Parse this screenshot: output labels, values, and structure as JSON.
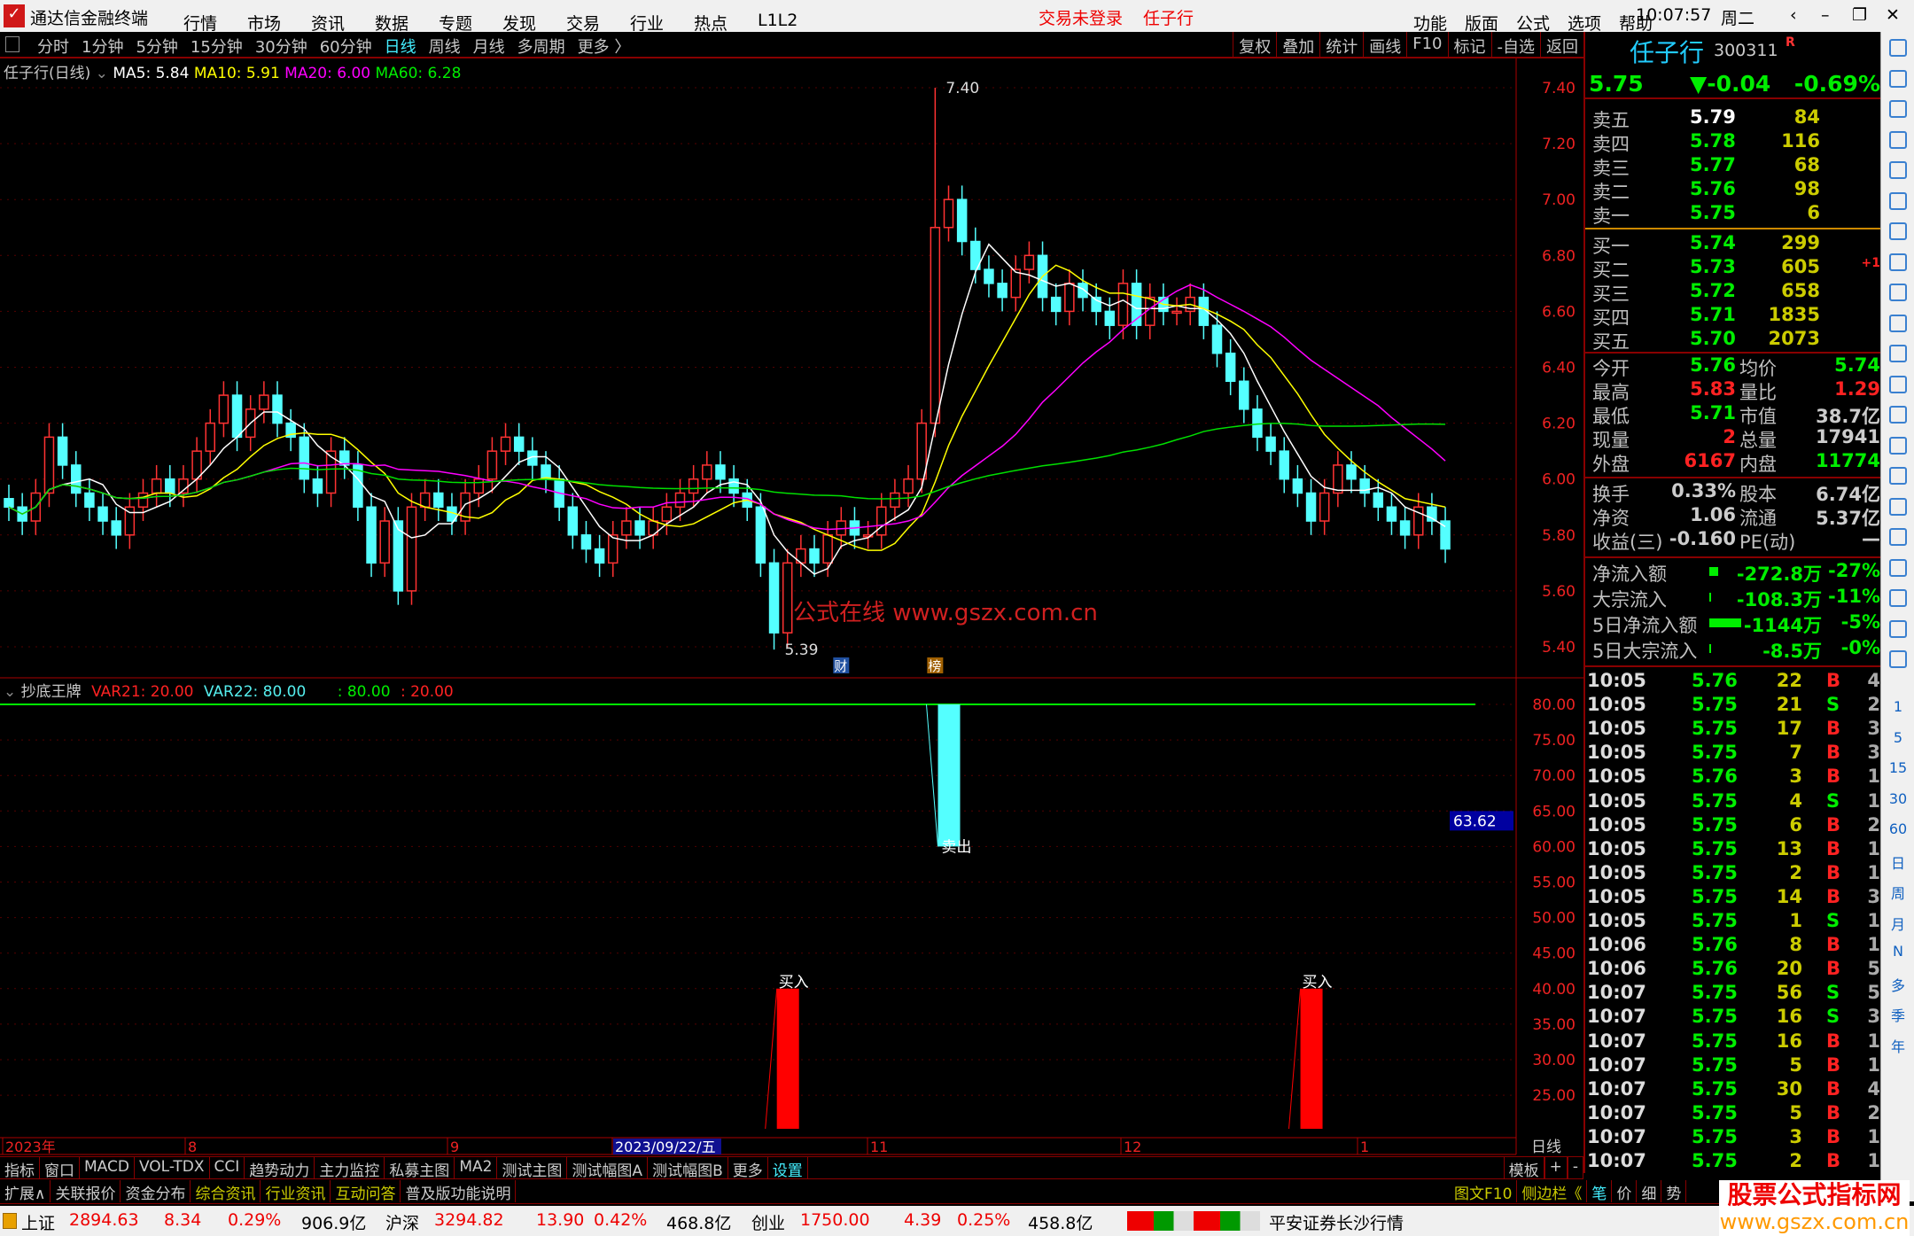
{
  "app": {
    "title": "通达信金融终端",
    "menu": [
      "行情",
      "市场",
      "资讯",
      "数据",
      "专题",
      "发现",
      "交易",
      "行业",
      "热点",
      "L1L2"
    ],
    "login": "交易未登录",
    "stock_tag": "任子行",
    "right_menu": [
      "功能",
      "版面",
      "公式",
      "选项",
      "帮助"
    ],
    "clock": "10:07:57",
    "weekday": "周二"
  },
  "periods": [
    "分时",
    "1分钟",
    "5分钟",
    "15分钟",
    "30分钟",
    "60分钟",
    "日线",
    "周线",
    "月线",
    "多周期",
    "更多 〉"
  ],
  "active_period": "日线",
  "chart_buttons": [
    "复权",
    "叠加",
    "统计",
    "画线",
    "F10",
    "标记",
    "-自选",
    "返回"
  ],
  "legend": {
    "title": "任子行(日线)",
    "ma5": "MA5: 5.84",
    "ma10": "MA10: 5.91",
    "ma20": "MA20: 6.00",
    "ma60": "MA60: 6.28"
  },
  "colors": {
    "ma5": "#ffffff",
    "ma10": "#ffff00",
    "ma20": "#ff00ff",
    "ma60": "#00e000",
    "up": "#ff3232",
    "down": "#54ffff"
  },
  "price_axis": [
    "7.40",
    "7.20",
    "7.00",
    "6.80",
    "6.60",
    "6.40",
    "6.20",
    "6.00",
    "5.80",
    "5.60",
    "5.40"
  ],
  "closes": [
    5.9,
    5.85,
    5.95,
    6.15,
    6.05,
    5.95,
    5.9,
    5.85,
    5.8,
    5.9,
    5.95,
    6.0,
    5.95,
    6.0,
    6.1,
    6.2,
    6.3,
    6.15,
    6.25,
    6.3,
    6.2,
    6.15,
    6.0,
    5.95,
    6.1,
    6.05,
    5.9,
    5.7,
    5.85,
    5.6,
    5.9,
    5.95,
    5.9,
    5.85,
    5.95,
    6.0,
    6.1,
    6.15,
    6.1,
    6.05,
    6.0,
    5.9,
    5.8,
    5.75,
    5.7,
    5.8,
    5.85,
    5.8,
    5.85,
    5.9,
    5.95,
    6.0,
    6.05,
    6.0,
    5.95,
    5.9,
    5.7,
    5.45,
    5.7,
    5.75,
    5.7,
    5.8,
    5.85,
    5.8,
    5.8,
    5.9,
    5.95,
    6.0,
    6.2,
    6.9,
    7.0,
    6.85,
    6.75,
    6.7,
    6.65,
    6.75,
    6.8,
    6.65,
    6.6,
    6.7,
    6.65,
    6.6,
    6.55,
    6.7,
    6.55,
    6.65,
    6.6,
    6.6,
    6.65,
    6.55,
    6.45,
    6.35,
    6.25,
    6.15,
    6.1,
    6.0,
    5.95,
    5.85,
    5.95,
    6.05,
    6.0,
    5.95,
    5.9,
    5.85,
    5.8,
    5.9,
    5.85,
    5.75
  ],
  "high_mark": "7.40",
  "low_mark": "5.39",
  "watermark": "公式在线  www.gszx.com.cn",
  "event_badges": [
    "财",
    "榜"
  ],
  "indicator": {
    "name": "抄底王牌",
    "var21": "VAR21: 20.00",
    "var22": "VAR22: 80.00",
    "l1": ": 80.00",
    "l2": ": 20.00",
    "axis": [
      "80.00",
      "75.00",
      "70.00",
      "65.00",
      "60.00",
      "55.00",
      "50.00",
      "45.00",
      "40.00",
      "35.00",
      "30.00",
      "25.00"
    ],
    "cursor": "63.62",
    "sell_label": "卖出",
    "buy_label": "买入",
    "signals": [
      {
        "type": "buy",
        "bar": 58,
        "value": 40
      },
      {
        "type": "sell",
        "bar": 70,
        "value": 60
      },
      {
        "type": "buy",
        "bar": 97,
        "value": 40
      }
    ]
  },
  "date_axis": [
    "2023年",
    "8",
    "9",
    "2023/09/22/五",
    "11",
    "12",
    "1"
  ],
  "period_label": "日线",
  "tabs": [
    "指标",
    "窗口",
    "MACD",
    "VOL-TDX",
    "CCI",
    "趋势动力",
    "主力监控",
    "私募主图",
    "MA2",
    "测试主图",
    "测试幅图A",
    "测试幅图B",
    "更多",
    "设置"
  ],
  "tabs_right": [
    "模板",
    "+",
    "-"
  ],
  "tabs2": [
    "扩展∧",
    "关联报价",
    "资金分布",
    "综合资讯",
    "行业资讯",
    "互动问答",
    "普及版功能说明"
  ],
  "tabs2_right": [
    "图文F10",
    "侧边栏《",
    "笔",
    "价",
    "细",
    "势"
  ],
  "quote": {
    "name": "任子行",
    "code": "300311",
    "flag": "R",
    "price": "5.75",
    "change": "▼-0.04",
    "pct": "-0.69%",
    "asks": [
      [
        "卖五",
        "5.79",
        "84"
      ],
      [
        "卖四",
        "5.78",
        "116"
      ],
      [
        "卖三",
        "5.77",
        "68"
      ],
      [
        "卖二",
        "5.76",
        "98"
      ],
      [
        "卖一",
        "5.75",
        "6"
      ]
    ],
    "bids": [
      [
        "买一",
        "5.74",
        "299",
        ""
      ],
      [
        "买二",
        "5.73",
        "605",
        "+1"
      ],
      [
        "买三",
        "5.72",
        "658",
        ""
      ],
      [
        "买四",
        "5.71",
        "1835",
        ""
      ],
      [
        "买五",
        "5.70",
        "2073",
        ""
      ]
    ],
    "stats": [
      [
        "今开",
        "5.76",
        "均价",
        "5.74"
      ],
      [
        "最高",
        "5.83",
        "量比",
        "1.29"
      ],
      [
        "最低",
        "5.71",
        "市值",
        "38.7亿"
      ],
      [
        "现量",
        "2",
        "总量",
        "17941"
      ],
      [
        "外盘",
        "6167",
        "内盘",
        "11774"
      ]
    ],
    "stats2": [
      [
        "换手",
        "0.33%",
        "股本",
        "6.74亿"
      ],
      [
        "净资",
        "1.06",
        "流通",
        "5.37亿"
      ],
      [
        "收益(三)",
        "-0.160",
        "PE(动)",
        "—"
      ]
    ],
    "flows": [
      [
        "净流入额",
        "-272.8万",
        "-27%",
        0.27
      ],
      [
        "大宗流入",
        "-108.3万",
        "-11%",
        0.05
      ],
      [
        "5日净流入额",
        "-1144万",
        "-5%",
        1.0
      ],
      [
        "5日大宗流入",
        "-8.5万",
        "-0%",
        0.03
      ]
    ]
  },
  "ticks": [
    [
      "10:05",
      "5.76",
      "22",
      "B",
      "4"
    ],
    [
      "10:05",
      "5.75",
      "21",
      "S",
      "2"
    ],
    [
      "10:05",
      "5.75",
      "17",
      "B",
      "3"
    ],
    [
      "10:05",
      "5.75",
      "7",
      "B",
      "3"
    ],
    [
      "10:05",
      "5.76",
      "3",
      "B",
      "1"
    ],
    [
      "10:05",
      "5.75",
      "4",
      "S",
      "1"
    ],
    [
      "10:05",
      "5.75",
      "6",
      "B",
      "2"
    ],
    [
      "10:05",
      "5.75",
      "13",
      "B",
      "1"
    ],
    [
      "10:05",
      "5.75",
      "2",
      "B",
      "1"
    ],
    [
      "10:05",
      "5.75",
      "14",
      "B",
      "3"
    ],
    [
      "10:05",
      "5.75",
      "1",
      "S",
      "1"
    ],
    [
      "10:06",
      "5.76",
      "8",
      "B",
      "1"
    ],
    [
      "10:06",
      "5.76",
      "20",
      "B",
      "5"
    ],
    [
      "10:07",
      "5.75",
      "56",
      "S",
      "5"
    ],
    [
      "10:07",
      "5.75",
      "16",
      "S",
      "3"
    ],
    [
      "10:07",
      "5.75",
      "16",
      "B",
      "1"
    ],
    [
      "10:07",
      "5.75",
      "5",
      "B",
      "1"
    ],
    [
      "10:07",
      "5.75",
      "30",
      "B",
      "4"
    ],
    [
      "10:07",
      "5.75",
      "5",
      "B",
      "2"
    ],
    [
      "10:07",
      "5.75",
      "3",
      "B",
      "1"
    ],
    [
      "10:07",
      "5.75",
      "2",
      "B",
      "1"
    ]
  ],
  "side_icons": [
    "1",
    "5",
    "15",
    "30",
    "60",
    "日",
    "周",
    "月",
    "N",
    "多",
    "季",
    "年"
  ],
  "status": {
    "sh_name": "上证",
    "sh": "2894.63",
    "sh_chg": "8.34",
    "sh_pct": "0.29%",
    "sh_amt": "906.9亿",
    "hs_name": "沪深",
    "hs": "3294.82",
    "hs_chg": "13.90",
    "hs_pct": "0.42%",
    "hs_amt": "468.8亿",
    "cy_name": "创业",
    "cy": "1750.00",
    "cy_chg": "4.39",
    "cy_pct": "0.25%",
    "cy_amt": "458.8亿",
    "broker": "平安证券长沙行情"
  },
  "corner_logo": {
    "title": "股票公式指标网",
    "url": "www.gszx.com.cn"
  }
}
